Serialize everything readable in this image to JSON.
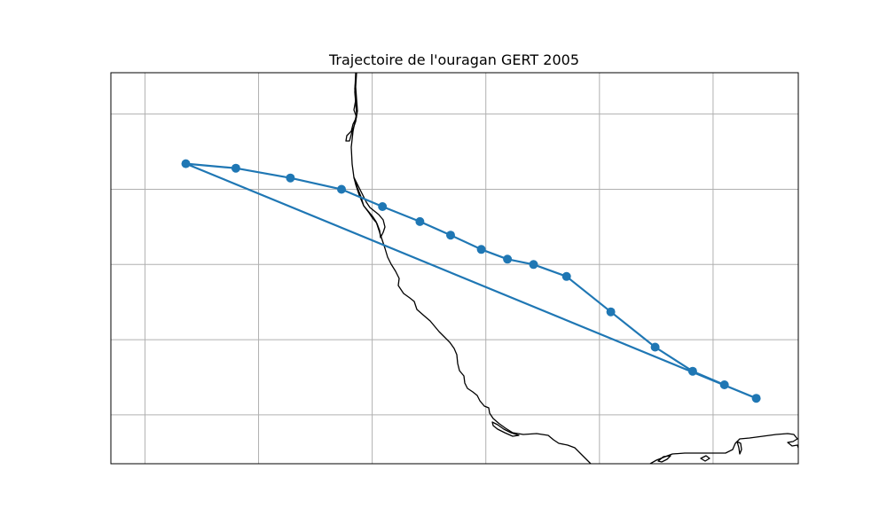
{
  "title": "Trajectoire de l'ouragan GERT 2005",
  "colors": {
    "track": "#1f77b4",
    "coastline": "#000000",
    "grid": "#b0b0b0",
    "background": "#ffffff"
  },
  "map": {
    "projection": "plate-carree",
    "gridlines": true,
    "extent_lon": [
      -100.3,
      -94.25
    ],
    "extent_lat": [
      17.35,
      22.55
    ],
    "gridline_lons": [
      -100,
      -99,
      -98,
      -97,
      -96,
      -95
    ],
    "gridline_lats": [
      18,
      19,
      20,
      21,
      22
    ]
  },
  "chart_data": {
    "type": "map-track",
    "title": "Trajectoire de l'ouragan GERT 2005",
    "storm": "GERT",
    "year": 2005,
    "track": [
      {
        "lon": -94.9,
        "lat": 18.4
      },
      {
        "lon": -95.18,
        "lat": 18.58
      },
      {
        "lon": -95.51,
        "lat": 18.9
      },
      {
        "lon": -95.9,
        "lat": 19.37
      },
      {
        "lon": -96.29,
        "lat": 19.84
      },
      {
        "lon": -96.58,
        "lat": 20.0
      },
      {
        "lon": -96.81,
        "lat": 20.07
      },
      {
        "lon": -97.04,
        "lat": 20.2
      },
      {
        "lon": -97.31,
        "lat": 20.39
      },
      {
        "lon": -97.58,
        "lat": 20.57
      },
      {
        "lon": -97.91,
        "lat": 20.77
      },
      {
        "lon": -98.27,
        "lat": 21.0
      },
      {
        "lon": -98.72,
        "lat": 21.15
      },
      {
        "lon": -99.2,
        "lat": 21.28
      },
      {
        "lon": -99.64,
        "lat": 21.34
      },
      {
        "lon": -94.62,
        "lat": 18.22
      }
    ]
  }
}
